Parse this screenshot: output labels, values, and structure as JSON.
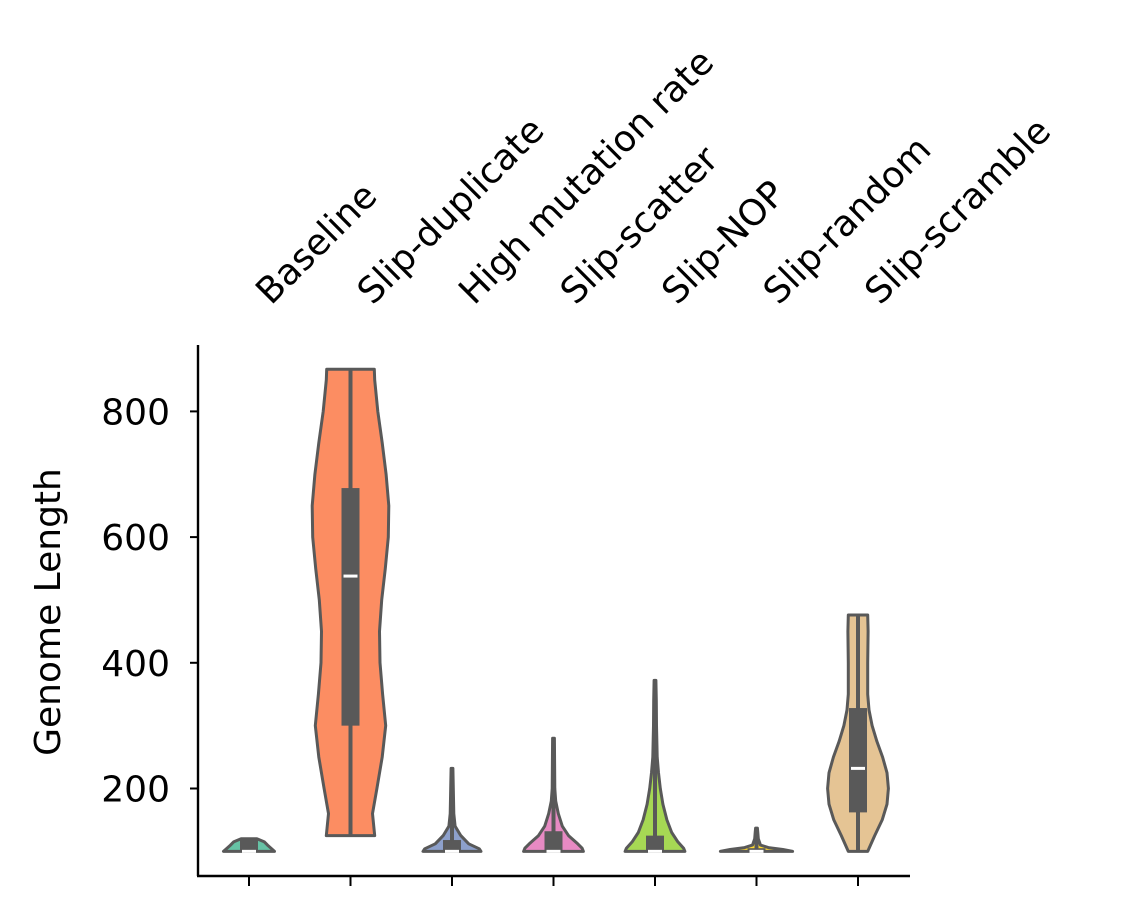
{
  "chart_data": {
    "type": "violin",
    "title": "",
    "xlabel": "",
    "ylabel": "Genome Length",
    "ylim": [
      60,
      905
    ],
    "yticks": [
      200,
      400,
      600,
      800
    ],
    "grid": false,
    "categories": [
      "Baseline",
      "Slip-duplicate",
      "High mutation rate",
      "Slip-scatter",
      "Slip-NOP",
      "Slip-random",
      "Slip-scramble"
    ],
    "colors": [
      "#66c2a5",
      "#fc8d62",
      "#8da0cb",
      "#e78ac3",
      "#a6d854",
      "#ffd92f",
      "#e5c494"
    ],
    "violins": [
      {
        "min": 100,
        "max": 120,
        "q1": 100,
        "median": 100,
        "q3": 120,
        "profile": [
          [
            100,
            0.58
          ],
          [
            105,
            0.5
          ],
          [
            110,
            0.42
          ],
          [
            115,
            0.35
          ],
          [
            120,
            0.18
          ]
        ]
      },
      {
        "min": 125,
        "max": 867,
        "q1": 300,
        "median": 538,
        "q3": 678,
        "profile": [
          [
            125,
            0.55
          ],
          [
            160,
            0.5
          ],
          [
            200,
            0.6
          ],
          [
            250,
            0.72
          ],
          [
            300,
            0.8
          ],
          [
            350,
            0.73
          ],
          [
            400,
            0.67
          ],
          [
            450,
            0.66
          ],
          [
            500,
            0.71
          ],
          [
            550,
            0.79
          ],
          [
            600,
            0.86
          ],
          [
            650,
            0.87
          ],
          [
            700,
            0.81
          ],
          [
            750,
            0.72
          ],
          [
            800,
            0.62
          ],
          [
            850,
            0.55
          ],
          [
            867,
            0.54
          ]
        ]
      },
      {
        "min": 100,
        "max": 232,
        "q1": 100,
        "median": 100,
        "q3": 118,
        "profile": [
          [
            100,
            0.66
          ],
          [
            104,
            0.62
          ],
          [
            112,
            0.38
          ],
          [
            125,
            0.2
          ],
          [
            140,
            0.07
          ],
          [
            160,
            0.04
          ],
          [
            200,
            0.03
          ],
          [
            232,
            0.02
          ]
        ]
      },
      {
        "min": 100,
        "max": 280,
        "q1": 100,
        "median": 100,
        "q3": 132,
        "profile": [
          [
            100,
            0.68
          ],
          [
            105,
            0.65
          ],
          [
            112,
            0.55
          ],
          [
            125,
            0.34
          ],
          [
            140,
            0.2
          ],
          [
            160,
            0.11
          ],
          [
            180,
            0.05
          ],
          [
            200,
            0.03
          ],
          [
            240,
            0.025
          ],
          [
            280,
            0.02
          ]
        ]
      },
      {
        "min": 100,
        "max": 372,
        "q1": 100,
        "median": 100,
        "q3": 125,
        "profile": [
          [
            100,
            0.68
          ],
          [
            105,
            0.65
          ],
          [
            115,
            0.52
          ],
          [
            130,
            0.38
          ],
          [
            150,
            0.27
          ],
          [
            175,
            0.18
          ],
          [
            200,
            0.12
          ],
          [
            225,
            0.08
          ],
          [
            250,
            0.05
          ],
          [
            300,
            0.035
          ],
          [
            340,
            0.03
          ],
          [
            372,
            0.02
          ]
        ]
      },
      {
        "min": 100,
        "max": 137,
        "q1": 100,
        "median": 100,
        "q3": 105,
        "profile": [
          [
            100,
            0.82
          ],
          [
            103,
            0.6
          ],
          [
            106,
            0.27
          ],
          [
            110,
            0.09
          ],
          [
            120,
            0.04
          ],
          [
            130,
            0.03
          ],
          [
            137,
            0.02
          ]
        ]
      },
      {
        "min": 100,
        "max": 476,
        "q1": 162,
        "median": 232,
        "q3": 328,
        "profile": [
          [
            100,
            0.22
          ],
          [
            125,
            0.38
          ],
          [
            150,
            0.55
          ],
          [
            175,
            0.66
          ],
          [
            200,
            0.69
          ],
          [
            225,
            0.66
          ],
          [
            250,
            0.56
          ],
          [
            275,
            0.43
          ],
          [
            300,
            0.32
          ],
          [
            325,
            0.25
          ],
          [
            350,
            0.22
          ],
          [
            400,
            0.22
          ],
          [
            450,
            0.23
          ],
          [
            476,
            0.22
          ]
        ]
      }
    ]
  }
}
